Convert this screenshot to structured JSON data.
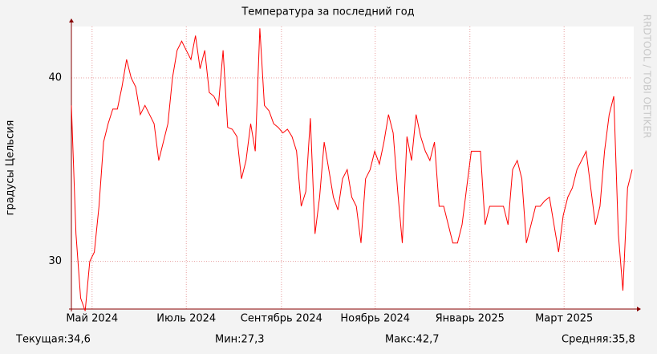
{
  "chart_data": {
    "type": "line",
    "title": "Температура за последний год",
    "y_label": "градусы Цельсия",
    "watermark": "RRDTOOL / TOBI OETIKER",
    "stats": [
      "Текущая:34,6",
      "Мин:27,3",
      "Макс:42,7",
      "Средняя:35,8"
    ],
    "series": [
      {
        "name": "Температура",
        "color": "#ff0000",
        "values": [
          38.5,
          31.5,
          28,
          27.3,
          30,
          30.5,
          33,
          36.5,
          37.5,
          38.3,
          38.3,
          39.5,
          41,
          40,
          39.5,
          38,
          38.5,
          38,
          37.5,
          35.5,
          36.5,
          37.5,
          40,
          41.5,
          42,
          41.5,
          41,
          42.3,
          40.5,
          41.5,
          39.2,
          39,
          38.5,
          41.5,
          37.3,
          37.2,
          36.8,
          34.5,
          35.5,
          37.5,
          36,
          42.7,
          38.5,
          38.2,
          37.5,
          37.3,
          37,
          37.2,
          36.8,
          36,
          33,
          33.8,
          37.8,
          31.5,
          33.5,
          36.5,
          35,
          33.5,
          32.8,
          34.5,
          35,
          33.5,
          33,
          31,
          34.5,
          35,
          36,
          35.3,
          36.5,
          38,
          37,
          33.8,
          31,
          36.8,
          35.5,
          38,
          36.8,
          36,
          35.5,
          36.5,
          33,
          33,
          32,
          31,
          31,
          32,
          34,
          36,
          36,
          36,
          32,
          33,
          33,
          33,
          33,
          32,
          35,
          35.5,
          34.5,
          31,
          32,
          33,
          33,
          33.3,
          33.5,
          32,
          30.5,
          32.5,
          33.5,
          34,
          35,
          35.5,
          36,
          34,
          32,
          33,
          36,
          38,
          39,
          31.5,
          28.4,
          34,
          35
        ]
      }
    ],
    "xlim": [
      0,
      122
    ],
    "xticks": [
      {
        "value": 4.5,
        "label": "Май 2024"
      },
      {
        "value": 25,
        "label": "Июль 2024"
      },
      {
        "value": 45.7,
        "label": "Сентябрь 2024"
      },
      {
        "value": 66.1,
        "label": "Ноябрь 2024"
      },
      {
        "value": 86.7,
        "label": "Январь 2025"
      },
      {
        "value": 107.2,
        "label": "Март 2025"
      }
    ],
    "ylim": [
      27.4,
      42.8
    ],
    "yticks": [
      30,
      40
    ],
    "grid": true
  }
}
